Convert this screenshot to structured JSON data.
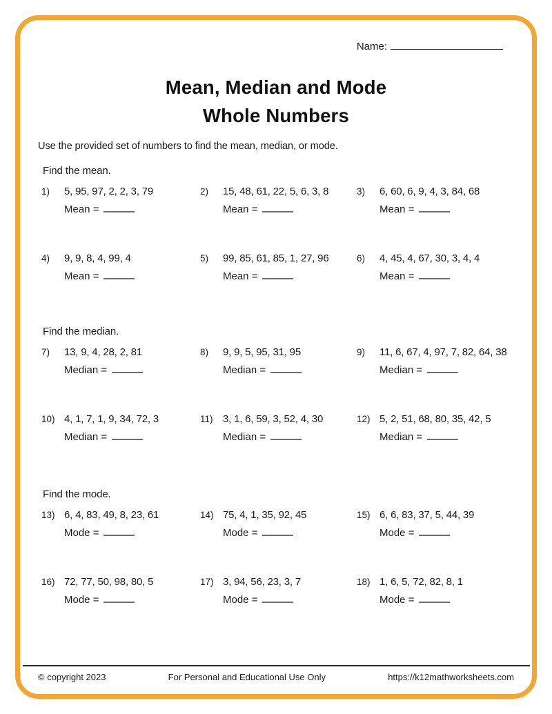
{
  "page": {
    "name_label": "Name:",
    "title_line1": "Mean, Median and Mode",
    "title_line2": "Whole Numbers",
    "instruction": "Use the provided set of numbers to find the mean, median, or mode."
  },
  "sections": [
    {
      "heading": "Find the mean.",
      "answer_label": "Mean =",
      "problems": [
        {
          "num": "1)",
          "values": "5, 95, 97, 2, 2, 3, 79"
        },
        {
          "num": "2)",
          "values": "15, 48, 61, 22, 5, 6, 3, 8"
        },
        {
          "num": "3)",
          "values": "6, 60, 6, 9, 4, 3, 84, 68"
        },
        {
          "num": "4)",
          "values": "9, 9, 8, 4, 99, 4"
        },
        {
          "num": "5)",
          "values": "99, 85, 61, 85, 1, 27, 96"
        },
        {
          "num": "6)",
          "values": "4, 45, 4, 67, 30, 3, 4, 4"
        }
      ]
    },
    {
      "heading": "Find the median.",
      "answer_label": "Median =",
      "problems": [
        {
          "num": "7)",
          "values": "13, 9, 4, 28, 2, 81"
        },
        {
          "num": "8)",
          "values": "9, 9, 5, 95, 31, 95"
        },
        {
          "num": "9)",
          "values": "11, 6, 67, 4, 97, 7, 82, 64, 38"
        },
        {
          "num": "10)",
          "values": "4, 1, 7, 1, 9, 34, 72, 3"
        },
        {
          "num": "11)",
          "values": "3, 1, 6, 59, 3, 52, 4, 30"
        },
        {
          "num": "12)",
          "values": "5, 2, 51, 68, 80, 35, 42, 5"
        }
      ]
    },
    {
      "heading": "Find the mode.",
      "answer_label": "Mode =",
      "problems": [
        {
          "num": "13)",
          "values": "6, 4, 83, 49, 8, 23, 61"
        },
        {
          "num": "14)",
          "values": "75, 4, 1, 35, 92, 45"
        },
        {
          "num": "15)",
          "values": "6, 6, 83, 37, 5, 44, 39"
        },
        {
          "num": "16)",
          "values": "72, 77, 50, 98, 80, 5"
        },
        {
          "num": "17)",
          "values": "3, 94, 56, 23, 3, 7"
        },
        {
          "num": "18)",
          "values": "1, 6, 5, 72, 82, 8, 1"
        }
      ]
    }
  ],
  "footer": {
    "copyright": "© copyright 2023",
    "usage": "For Personal and Educational Use Only",
    "url": "https://k12mathworksheets.com"
  },
  "colors": {
    "border": "#f2a633"
  }
}
